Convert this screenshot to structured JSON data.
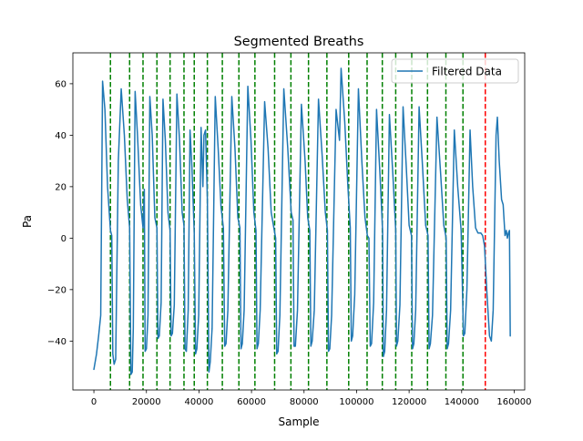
{
  "chart_data": {
    "type": "line",
    "title": "Segmented Breaths",
    "xlabel": "Sample",
    "ylabel": "Pa",
    "xlim": [
      -8000,
      164000
    ],
    "ylim": [
      -59,
      72
    ],
    "x_ticks": [
      0,
      20000,
      40000,
      60000,
      80000,
      100000,
      120000,
      140000,
      160000
    ],
    "x_tick_labels": [
      "0",
      "20000",
      "40000",
      "60000",
      "80000",
      "100000",
      "120000",
      "140000",
      "160000"
    ],
    "y_ticks": [
      -40,
      -20,
      0,
      20,
      40,
      60
    ],
    "y_tick_labels": [
      "−40",
      "−20",
      "0",
      "20",
      "40",
      "60"
    ],
    "grid": false,
    "legend": {
      "placement": "top-right",
      "entries": [
        "Filtered Data"
      ]
    },
    "colors": {
      "series": "#1f77b4",
      "boundary": "#008000",
      "final_boundary": "#ff0000"
    },
    "series": [
      {
        "name": "Filtered Data",
        "points": [
          [
            0,
            -51
          ],
          [
            1000,
            -45
          ],
          [
            1800,
            -38
          ],
          [
            2600,
            -30
          ],
          [
            3300,
            61
          ],
          [
            4200,
            50
          ],
          [
            5200,
            20
          ],
          [
            6300,
            3
          ],
          [
            6800,
            1
          ],
          [
            7200,
            -45
          ],
          [
            7700,
            -49
          ],
          [
            8300,
            -47
          ],
          [
            9300,
            30
          ],
          [
            10400,
            58
          ],
          [
            11600,
            40
          ],
          [
            12700,
            15
          ],
          [
            13600,
            4
          ],
          [
            14100,
            -53
          ],
          [
            14600,
            -52
          ],
          [
            15000,
            -35
          ],
          [
            15700,
            57
          ],
          [
            16600,
            40
          ],
          [
            17800,
            13
          ],
          [
            18700,
            4
          ],
          [
            19200,
            19
          ],
          [
            19500,
            -44
          ],
          [
            20000,
            -43
          ],
          [
            20600,
            -30
          ],
          [
            21300,
            55
          ],
          [
            22200,
            40
          ],
          [
            23200,
            8
          ],
          [
            24000,
            4
          ],
          [
            24400,
            -39
          ],
          [
            24900,
            -38
          ],
          [
            25600,
            -25
          ],
          [
            26300,
            54
          ],
          [
            27200,
            38
          ],
          [
            28200,
            10
          ],
          [
            29000,
            3
          ],
          [
            29400,
            -38
          ],
          [
            29900,
            -37
          ],
          [
            30600,
            -26
          ],
          [
            31600,
            56
          ],
          [
            32600,
            38
          ],
          [
            33600,
            10
          ],
          [
            34300,
            5
          ],
          [
            34700,
            -43
          ],
          [
            35200,
            -44
          ],
          [
            35900,
            -28
          ],
          [
            36600,
            42
          ],
          [
            37300,
            28
          ],
          [
            38200,
            2
          ],
          [
            38700,
            -45
          ],
          [
            39200,
            -43
          ],
          [
            39900,
            -30
          ],
          [
            40800,
            43
          ],
          [
            41500,
            20
          ],
          [
            41900,
            40
          ],
          [
            42500,
            42
          ],
          [
            43200,
            15
          ],
          [
            43800,
            -52
          ],
          [
            44300,
            -48
          ],
          [
            45000,
            -35
          ],
          [
            46200,
            55
          ],
          [
            47300,
            35
          ],
          [
            48400,
            12
          ],
          [
            49300,
            4
          ],
          [
            49800,
            -42
          ],
          [
            50300,
            -41
          ],
          [
            51000,
            -28
          ],
          [
            52500,
            55
          ],
          [
            53700,
            35
          ],
          [
            54800,
            8
          ],
          [
            55600,
            4
          ],
          [
            56000,
            -43
          ],
          [
            56500,
            -41
          ],
          [
            57200,
            -28
          ],
          [
            58600,
            59
          ],
          [
            59800,
            38
          ],
          [
            60900,
            10
          ],
          [
            61700,
            3
          ],
          [
            62100,
            -43
          ],
          [
            62600,
            -41
          ],
          [
            63300,
            -28
          ],
          [
            65000,
            53
          ],
          [
            66300,
            35
          ],
          [
            67500,
            10
          ],
          [
            68500,
            4
          ],
          [
            69200,
            0
          ],
          [
            69600,
            -45
          ],
          [
            70100,
            -44
          ],
          [
            70800,
            -30
          ],
          [
            72300,
            58
          ],
          [
            73800,
            35
          ],
          [
            75100,
            10
          ],
          [
            75800,
            7
          ],
          [
            76200,
            -42
          ],
          [
            76700,
            -42
          ],
          [
            77500,
            -28
          ],
          [
            79000,
            52
          ],
          [
            80400,
            30
          ],
          [
            81400,
            8
          ],
          [
            82200,
            3
          ],
          [
            82600,
            -42
          ],
          [
            83100,
            -40
          ],
          [
            83900,
            -28
          ],
          [
            85500,
            54
          ],
          [
            86900,
            32
          ],
          [
            88100,
            10
          ],
          [
            88900,
            3
          ],
          [
            89300,
            -44
          ],
          [
            89800,
            -43
          ],
          [
            90500,
            -30
          ],
          [
            92200,
            50
          ],
          [
            93500,
            38
          ],
          [
            94100,
            66
          ],
          [
            95500,
            45
          ],
          [
            96700,
            20
          ],
          [
            97600,
            4
          ],
          [
            98000,
            -40
          ],
          [
            98500,
            -38
          ],
          [
            99300,
            -22
          ],
          [
            100700,
            58
          ],
          [
            102000,
            30
          ],
          [
            103200,
            8
          ],
          [
            104100,
            1
          ],
          [
            104700,
            0
          ],
          [
            105200,
            -42
          ],
          [
            105700,
            -41
          ],
          [
            106500,
            -25
          ],
          [
            107600,
            50
          ],
          [
            108900,
            25
          ],
          [
            109900,
            3
          ],
          [
            110200,
            -46
          ],
          [
            110700,
            -44
          ],
          [
            111400,
            -28
          ],
          [
            112500,
            48
          ],
          [
            113800,
            25
          ],
          [
            114900,
            3
          ],
          [
            115200,
            -42
          ],
          [
            115700,
            -40
          ],
          [
            116500,
            -26
          ],
          [
            117700,
            51
          ],
          [
            118900,
            28
          ],
          [
            120000,
            5
          ],
          [
            120900,
            1
          ],
          [
            121300,
            -43
          ],
          [
            121800,
            -41
          ],
          [
            122500,
            -28
          ],
          [
            123800,
            51
          ],
          [
            125100,
            28
          ],
          [
            126300,
            5
          ],
          [
            127200,
            1
          ],
          [
            127600,
            -43
          ],
          [
            128100,
            -41
          ],
          [
            128900,
            -30
          ],
          [
            130600,
            47
          ],
          [
            132000,
            25
          ],
          [
            133200,
            5
          ],
          [
            134100,
            0
          ],
          [
            134500,
            -43
          ],
          [
            135000,
            -41
          ],
          [
            135800,
            -28
          ],
          [
            137200,
            42
          ],
          [
            138500,
            20
          ],
          [
            139800,
            3
          ],
          [
            140700,
            -38
          ],
          [
            141200,
            -37
          ],
          [
            142000,
            -20
          ],
          [
            143200,
            42
          ],
          [
            144200,
            20
          ],
          [
            145300,
            4
          ],
          [
            146200,
            2
          ],
          [
            147300,
            2
          ],
          [
            148000,
            1
          ],
          [
            148700,
            -3
          ],
          [
            149600,
            -21
          ],
          [
            150600,
            -38
          ],
          [
            151300,
            -40
          ],
          [
            152000,
            -28
          ],
          [
            153100,
            40
          ],
          [
            153600,
            47
          ],
          [
            154300,
            30
          ],
          [
            155200,
            15
          ],
          [
            155800,
            13
          ],
          [
            156500,
            1
          ],
          [
            157000,
            3
          ],
          [
            157400,
            0
          ],
          [
            157800,
            2
          ],
          [
            158200,
            3
          ],
          [
            158500,
            -38
          ]
        ]
      }
    ],
    "boundaries": [
      6300,
      13600,
      18700,
      24000,
      29000,
      34300,
      38200,
      43200,
      48900,
      55200,
      61300,
      68800,
      75000,
      81700,
      88700,
      97000,
      104000,
      109800,
      114900,
      121000,
      127000,
      134000,
      140500
    ],
    "final_boundary": 149000
  }
}
